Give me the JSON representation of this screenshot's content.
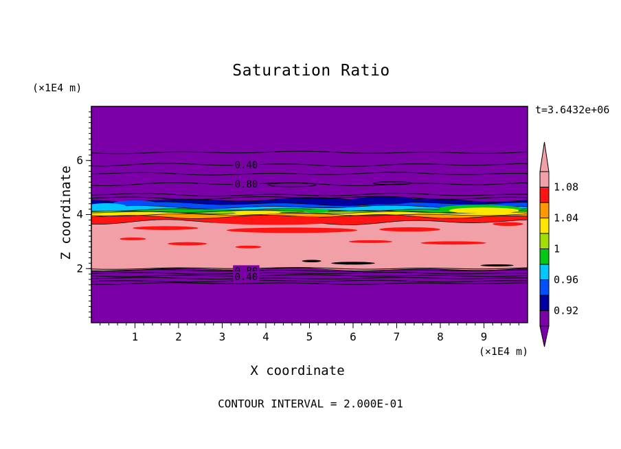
{
  "title": "Saturation Ratio",
  "time_label": "t=3.6432e+06",
  "footer": "CONTOUR INTERVAL = 2.000E-01",
  "axis": {
    "x_label": "X coordinate",
    "y_label": "Z coordinate",
    "x_unit": "(×1E4 m)",
    "y_unit": "(×1E4 m)"
  },
  "chart_data": {
    "type": "heatmap",
    "title": "Saturation Ratio",
    "xlabel": "X coordinate",
    "ylabel": "Z coordinate",
    "x_unit": "(×1E4 m)",
    "y_unit": "(×1E4 m)",
    "time_annotation": "t=3.6432e+06",
    "contour_interval_annotation": "CONTOUR INTERVAL = 2.000E-01",
    "xlim": [
      0,
      10
    ],
    "ylim": [
      0,
      8
    ],
    "x_ticks": [
      1,
      2,
      3,
      4,
      5,
      6,
      7,
      8,
      9
    ],
    "y_ticks": [
      2,
      4,
      6
    ],
    "x_minor_step": 0.2,
    "y_minor_step": 0.2,
    "background_color": "#7C00A8",
    "colorbar": {
      "levels_top_to_bottom": [
        1.1,
        1.08,
        1.06,
        1.04,
        1.02,
        1.0,
        0.98,
        0.96,
        0.94,
        0.92,
        0.9
      ],
      "segment_colors_top_to_bottom": [
        "#F2A0A8",
        "#FF1414",
        "#FF9900",
        "#FFE600",
        "#A0E000",
        "#00C814",
        "#00C8FF",
        "#0050FF",
        "#0000A0",
        "#7C00A8"
      ],
      "ticks": [
        {
          "label": "1.08",
          "boundary_index": 1
        },
        {
          "label": "1.04",
          "boundary_index": 3
        },
        {
          "label": "1",
          "boundary_index": 5
        },
        {
          "label": "0.96",
          "boundary_index": 7
        },
        {
          "label": "0.92",
          "boundary_index": 9
        }
      ]
    },
    "fill_bands": [
      {
        "value_range": "0.92-0.94",
        "color": "#0000A0",
        "z_top": 4.55,
        "amp": 2.2,
        "phase": 0.0
      },
      {
        "value_range": "0.94-0.96",
        "color": "#0050FF",
        "z_top": 4.4,
        "amp": 1.8,
        "phase": 1.3
      },
      {
        "value_range": "0.96-0.98",
        "color": "#00C8FF",
        "z_top": 4.28,
        "amp": 1.6,
        "phase": 2.1
      },
      {
        "value_range": "0.98-1.00",
        "color": "#00C814",
        "z_top": 4.18,
        "amp": 1.4,
        "phase": 0.7
      },
      {
        "value_range": "1.00-1.02",
        "color": "#A0E000",
        "z_top": 4.12,
        "amp": 1.2,
        "phase": 2.9
      },
      {
        "value_range": "1.02-1.04",
        "color": "#FFE600",
        "z_top": 4.07,
        "amp": 1.2,
        "phase": 1.9
      },
      {
        "value_range": "1.04-1.06",
        "color": "#FF9900",
        "z_top": 4.0,
        "amp": 1.4,
        "phase": 0.4
      },
      {
        "value_range": "1.06-1.08",
        "color": "#FF1414",
        "z_top": 3.93,
        "amp": 2.0,
        "phase": 2.5
      },
      {
        "value_range": "1.08-1.10",
        "color": "#F2A0A8",
        "z_top": 3.72,
        "amp": 2.5,
        "phase": 1.1
      },
      {
        "value_range": "<0.92",
        "color": "#7C00A8",
        "z_top": 1.97,
        "amp": 1.5,
        "phase": 0.6
      }
    ],
    "fill_patches": [
      {
        "color": "#0000A0",
        "cx": 6.7,
        "cz": 4.52,
        "rx": 0.75,
        "rz": 0.14
      },
      {
        "color": "#0050FF",
        "cx": 1.0,
        "cz": 4.42,
        "rx": 0.5,
        "rz": 0.1
      },
      {
        "color": "#00C8FF",
        "cx": 0.35,
        "cz": 4.3,
        "rx": 0.45,
        "rz": 0.12
      },
      {
        "color": "#00C814",
        "cx": 8.9,
        "cz": 4.22,
        "rx": 0.95,
        "rz": 0.14
      },
      {
        "color": "#FFE600",
        "cx": 9.0,
        "cz": 4.15,
        "rx": 0.8,
        "rz": 0.11
      },
      {
        "color": "#FFE600",
        "cx": 3.8,
        "cz": 4.07,
        "rx": 0.55,
        "rz": 0.06
      },
      {
        "color": "#00C814",
        "cx": 5.15,
        "cz": 4.14,
        "rx": 0.3,
        "rz": 0.07
      },
      {
        "color": "#FF1414",
        "cx": 4.2,
        "cz": 3.78,
        "rx": 1.6,
        "rz": 0.16
      },
      {
        "color": "#FF1414",
        "cx": 1.7,
        "cz": 3.5,
        "rx": 0.75,
        "rz": 0.07
      },
      {
        "color": "#FF1414",
        "cx": 4.6,
        "cz": 3.42,
        "rx": 1.5,
        "rz": 0.1
      },
      {
        "color": "#FF1414",
        "cx": 7.3,
        "cz": 3.45,
        "rx": 0.7,
        "rz": 0.08
      },
      {
        "color": "#FF1414",
        "cx": 9.55,
        "cz": 3.65,
        "rx": 0.35,
        "rz": 0.07
      },
      {
        "color": "#FF1414",
        "cx": 8.3,
        "cz": 2.95,
        "rx": 0.75,
        "rz": 0.06
      },
      {
        "color": "#FF1414",
        "cx": 2.2,
        "cz": 2.92,
        "rx": 0.45,
        "rz": 0.06
      },
      {
        "color": "#FF1414",
        "cx": 0.95,
        "cz": 3.1,
        "rx": 0.3,
        "rz": 0.05
      },
      {
        "color": "#FF1414",
        "cx": 3.6,
        "cz": 2.8,
        "rx": 0.3,
        "rz": 0.05
      },
      {
        "color": "#FF1414",
        "cx": 6.4,
        "cz": 3.0,
        "rx": 0.5,
        "rz": 0.05
      },
      {
        "color": "#000000",
        "cx": 5.05,
        "cz": 2.28,
        "rx": 0.22,
        "rz": 0.045
      },
      {
        "color": "#000000",
        "cx": 6.0,
        "cz": 2.2,
        "rx": 0.5,
        "rz": 0.05
      },
      {
        "color": "#000000",
        "cx": 9.3,
        "cz": 2.12,
        "rx": 0.38,
        "rz": 0.04
      }
    ],
    "line_contours": [
      {
        "z": 6.3,
        "amp": 1.2,
        "phase": 0.3
      },
      {
        "z": 5.84,
        "amp": 1.5,
        "phase": 1.1
      },
      {
        "z": 5.51,
        "amp": 1.3,
        "phase": 2.0
      },
      {
        "z": 5.13,
        "amp": 1.6,
        "phase": 0.8
      },
      {
        "z": 4.73,
        "amp": 1.5,
        "phase": 1.9
      },
      {
        "z": 4.62,
        "amp": 1.5,
        "phase": 2.6
      },
      {
        "z": 2.01,
        "amp": 0.9,
        "phase": 0.5
      },
      {
        "z": 1.93,
        "amp": 0.9,
        "phase": 1.4
      },
      {
        "z": 1.83,
        "amp": 0.9,
        "phase": 2.2
      },
      {
        "z": 1.74,
        "amp": 0.9,
        "phase": 0.1
      },
      {
        "z": 1.64,
        "amp": 0.9,
        "phase": 1.8
      },
      {
        "z": 1.54,
        "amp": 0.9,
        "phase": 2.7
      },
      {
        "z": 1.45,
        "amp": 0.9,
        "phase": 0.9
      }
    ],
    "contour_loops": [
      {
        "cx": 4.6,
        "cz": 5.1,
        "rx": 0.55,
        "rz": 0.07
      },
      {
        "cx": 6.9,
        "cz": 5.16,
        "rx": 0.45,
        "rz": 0.05
      }
    ],
    "contour_labels": [
      {
        "text": "0.40",
        "x": 3.55,
        "z": 5.84
      },
      {
        "text": "0.80",
        "x": 3.55,
        "z": 5.13
      },
      {
        "text": "0.80",
        "x": 3.55,
        "z": 1.92
      },
      {
        "text": "0.40",
        "x": 3.55,
        "z": 1.7
      }
    ]
  }
}
